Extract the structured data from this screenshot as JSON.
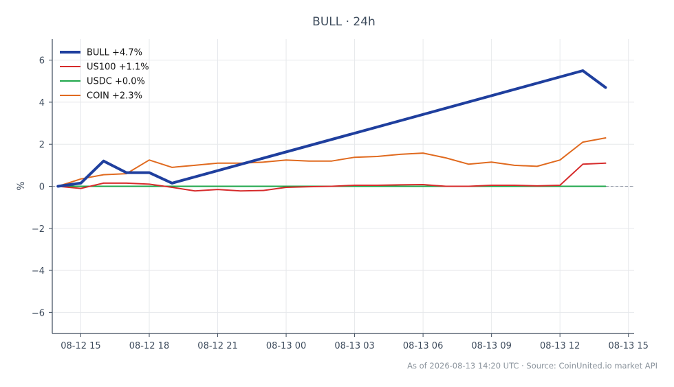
{
  "chart_data": {
    "type": "line",
    "title": "BULL · 24h",
    "xlabel": "",
    "ylabel": "%",
    "footer": "As of 2026-08-13 14:20 UTC · Source: CoinUnited.io market API",
    "xlim": [
      "2026-08-12 13:45",
      "2026-08-13 15:15"
    ],
    "ylim": [
      -7,
      7
    ],
    "grid": true,
    "legend_position": "top-left",
    "x_ticks": [
      {
        "x": "2026-08-12 15:00",
        "label": "08-12 15"
      },
      {
        "x": "2026-08-12 18:00",
        "label": "08-12 18"
      },
      {
        "x": "2026-08-12 21:00",
        "label": "08-12 21"
      },
      {
        "x": "2026-08-13 00:00",
        "label": "08-13 00"
      },
      {
        "x": "2026-08-13 03:00",
        "label": "08-13 03"
      },
      {
        "x": "2026-08-13 06:00",
        "label": "08-13 06"
      },
      {
        "x": "2026-08-13 09:00",
        "label": "08-13 09"
      },
      {
        "x": "2026-08-13 12:00",
        "label": "08-13 12"
      },
      {
        "x": "2026-08-13 15:00",
        "label": "08-13 15"
      }
    ],
    "y_ticks": [
      {
        "y": 6,
        "label": "6"
      },
      {
        "y": 4,
        "label": "4"
      },
      {
        "y": 2,
        "label": "2"
      },
      {
        "y": 0,
        "label": "0"
      },
      {
        "y": -2,
        "label": "−2"
      },
      {
        "y": -4,
        "label": "−4"
      },
      {
        "y": -6,
        "label": "−6"
      }
    ],
    "series": [
      {
        "name": "BULL +4.7%",
        "color": "#1f3f9e",
        "x": [
          "2026-08-12 14:00",
          "2026-08-12 15:00",
          "2026-08-12 16:00",
          "2026-08-12 17:00",
          "2026-08-12 18:00",
          "2026-08-12 19:00",
          "2026-08-13 13:00",
          "2026-08-13 14:00"
        ],
        "y": [
          0.0,
          0.15,
          1.2,
          0.65,
          0.65,
          0.15,
          5.5,
          4.7
        ]
      },
      {
        "name": "US100 +1.1%",
        "color": "#d62b2b",
        "x": [
          "2026-08-12 14:00",
          "2026-08-12 15:00",
          "2026-08-12 16:00",
          "2026-08-12 17:00",
          "2026-08-12 18:00",
          "2026-08-12 19:00",
          "2026-08-12 20:00",
          "2026-08-12 21:00",
          "2026-08-12 22:00",
          "2026-08-12 23:00",
          "2026-08-13 00:00",
          "2026-08-13 01:00",
          "2026-08-13 02:00",
          "2026-08-13 03:00",
          "2026-08-13 04:00",
          "2026-08-13 05:00",
          "2026-08-13 06:00",
          "2026-08-13 07:00",
          "2026-08-13 08:00",
          "2026-08-13 09:00",
          "2026-08-13 10:00",
          "2026-08-13 11:00",
          "2026-08-13 12:00",
          "2026-08-13 13:00",
          "2026-08-13 14:00"
        ],
        "y": [
          0.0,
          -0.1,
          0.15,
          0.15,
          0.1,
          -0.05,
          -0.22,
          -0.15,
          -0.22,
          -0.2,
          -0.05,
          -0.02,
          0.0,
          0.05,
          0.05,
          0.07,
          0.08,
          0.0,
          0.0,
          0.05,
          0.05,
          0.02,
          0.05,
          1.05,
          1.1
        ]
      },
      {
        "name": "USDC +0.0%",
        "color": "#1ea64a",
        "x": [
          "2026-08-12 14:00",
          "2026-08-13 14:00"
        ],
        "y": [
          0.0,
          0.0
        ]
      },
      {
        "name": "COIN +2.3%",
        "color": "#e06a1f",
        "x": [
          "2026-08-12 14:00",
          "2026-08-12 15:00",
          "2026-08-12 16:00",
          "2026-08-12 17:00",
          "2026-08-12 18:00",
          "2026-08-12 19:00",
          "2026-08-12 20:00",
          "2026-08-12 21:00",
          "2026-08-12 22:00",
          "2026-08-12 23:00",
          "2026-08-13 00:00",
          "2026-08-13 01:00",
          "2026-08-13 02:00",
          "2026-08-13 03:00",
          "2026-08-13 04:00",
          "2026-08-13 05:00",
          "2026-08-13 06:00",
          "2026-08-13 07:00",
          "2026-08-13 08:00",
          "2026-08-13 09:00",
          "2026-08-13 10:00",
          "2026-08-13 11:00",
          "2026-08-13 12:00",
          "2026-08-13 13:00",
          "2026-08-13 14:00"
        ],
        "y": [
          0.0,
          0.35,
          0.55,
          0.6,
          1.25,
          0.9,
          1.0,
          1.1,
          1.1,
          1.15,
          1.25,
          1.2,
          1.2,
          1.38,
          1.42,
          1.52,
          1.58,
          1.35,
          1.05,
          1.15,
          1.0,
          0.95,
          1.25,
          2.1,
          2.3
        ]
      }
    ]
  }
}
